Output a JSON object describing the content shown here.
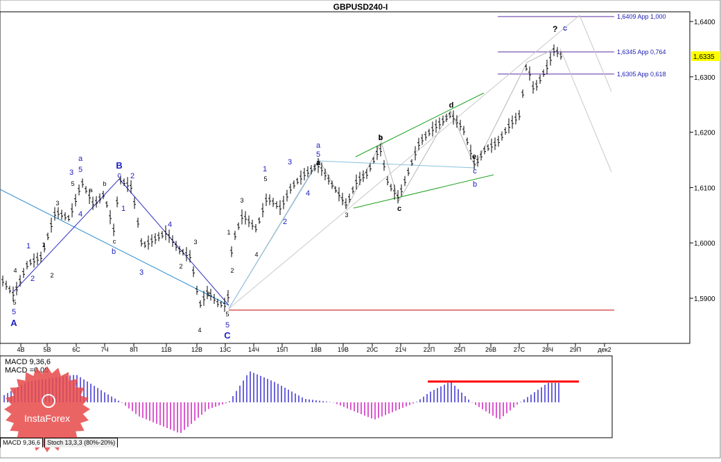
{
  "window": {
    "title": "GBPUSD240-I"
  },
  "price_panel": {
    "price_ticks": [
      "1,6400",
      "1,6300",
      "1,6200",
      "1,6100",
      "1,6000",
      "1,5900"
    ],
    "current_price": "1,6335",
    "date_labels": [
      "4B",
      "5B",
      "6C",
      "7Ч",
      "8П",
      "11В",
      "12В",
      "13С",
      "14Ч",
      "15П",
      "18В",
      "19В",
      "20С",
      "21Ч",
      "22П",
      "25П",
      "26В",
      "27С",
      "28Ч",
      "29П",
      "дек2"
    ],
    "fib_levels": [
      {
        "price": 1.6409,
        "label": "1,6409 App 1,000"
      },
      {
        "price": 1.6345,
        "label": "1,6345 App 0,764"
      },
      {
        "price": 1.6305,
        "label": "1,6305 App 0,618"
      }
    ],
    "question_mark": "?",
    "question_wave": "c"
  },
  "wave_labels": {
    "blue": [
      {
        "t": "A",
        "big": true
      },
      {
        "t": "5"
      },
      {
        "t": "1"
      },
      {
        "t": "2"
      },
      {
        "t": "3"
      },
      {
        "t": "5"
      },
      {
        "t": "a"
      },
      {
        "t": "4"
      },
      {
        "t": "B",
        "big": true
      },
      {
        "t": "c"
      },
      {
        "t": "2"
      },
      {
        "t": "1"
      },
      {
        "t": "b"
      },
      {
        "t": "4"
      },
      {
        "t": "3"
      },
      {
        "t": "5"
      },
      {
        "t": "C",
        "big": true
      },
      {
        "t": "1"
      },
      {
        "t": "2"
      },
      {
        "t": "3"
      },
      {
        "t": "4"
      },
      {
        "t": "5"
      },
      {
        "t": "a"
      },
      {
        "t": "b"
      },
      {
        "t": "c"
      }
    ],
    "black": [
      {
        "t": "4"
      },
      {
        "t": "5"
      },
      {
        "t": "1"
      },
      {
        "t": "2"
      },
      {
        "t": "3"
      },
      {
        "t": "5"
      },
      {
        "t": "a"
      },
      {
        "t": "b"
      },
      {
        "t": "c"
      },
      {
        "t": "1"
      },
      {
        "t": "2"
      },
      {
        "t": "3"
      },
      {
        "t": "4"
      },
      {
        "t": "5"
      },
      {
        "t": "1"
      },
      {
        "t": "2"
      },
      {
        "t": "3"
      },
      {
        "t": "4"
      },
      {
        "t": "5"
      },
      {
        "t": "a"
      },
      {
        "t": "b"
      },
      {
        "t": "c"
      },
      {
        "t": "d"
      },
      {
        "t": "e"
      },
      {
        "t": "3"
      },
      {
        "t": "2"
      }
    ]
  },
  "macd_panel": {
    "title_line1": "MACD 9,36,6",
    "title_line2": "MACD =0,00"
  },
  "tabs": [
    {
      "label": "MACD 9,36,6",
      "active": true
    },
    {
      "label": "Stoch 13,3,3 (80%-20%)",
      "active": false
    }
  ],
  "watermark": {
    "text": "InstaForex"
  },
  "colors": {
    "wave_blue": "#2020c0",
    "fib_line": "#5a2ea0",
    "support_line": "#c00000",
    "channel_green": "#20a020",
    "trendline_blue": "#2a8ad0",
    "macd_pos": "#3a30d0",
    "macd_neg": "#d020c0",
    "macd_marker": "#ff0000",
    "price_tag": "#ffff00",
    "watermark": "#e84a4a"
  },
  "chart_data": {
    "type": "line",
    "title": "GBPUSD240-I",
    "ylim": [
      1.585,
      1.642
    ],
    "x": [
      "4B",
      "5B",
      "6C",
      "7Ч",
      "8П",
      "11В",
      "12В",
      "13С",
      "14Ч",
      "15П",
      "18В",
      "19В",
      "20С",
      "21Ч",
      "22П",
      "25П",
      "26В",
      "27С",
      "28Ч",
      "29П"
    ],
    "series": [
      {
        "values": [
          1.5925,
          1.604,
          1.609,
          1.6075,
          1.606,
          1.5985,
          1.596,
          1.5905,
          1.6005,
          1.6075,
          1.613,
          1.606,
          1.616,
          1.611,
          1.6195,
          1.623,
          1.6155,
          1.6205,
          1.6305,
          1.6335
        ]
      }
    ]
  }
}
